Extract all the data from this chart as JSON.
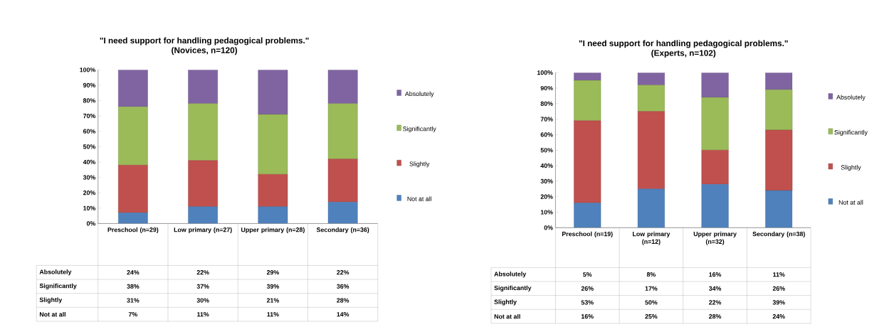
{
  "chart_data": [
    {
      "type": "bar",
      "stacked": true,
      "title": "\"I need support for handling pedagogical problems.\"",
      "subtitle": "(Novices, n=120)",
      "categories": [
        "Preschool (n=29)",
        "Low primary (n=27)",
        "Upper primary (n=28)",
        "Secondary (n=36)"
      ],
      "ylim": [
        0,
        100
      ],
      "yticks": [
        {
          "value": 0,
          "label": "0%"
        },
        {
          "value": 10,
          "label": "10%"
        },
        {
          "value": 20,
          "label": "20%"
        },
        {
          "value": 30,
          "label": "30%"
        },
        {
          "value": 40,
          "label": "40%"
        },
        {
          "value": 50,
          "label": "50%"
        },
        {
          "value": 60,
          "label": "60%"
        },
        {
          "value": 70,
          "label": "70%"
        },
        {
          "value": 80,
          "label": "80%"
        },
        {
          "value": 90,
          "label": "90%"
        },
        {
          "value": 100,
          "label": "100%"
        }
      ],
      "legend": "right",
      "series": [
        {
          "name": "Not at all",
          "color": "#4f81bd",
          "values": [
            7,
            11,
            11,
            14
          ],
          "value_labels": [
            "7%",
            "11%",
            "11%",
            "14%"
          ]
        },
        {
          "name": "Slightly",
          "color": "#c0504d",
          "values": [
            31,
            30,
            21,
            28
          ],
          "value_labels": [
            "31%",
            "30%",
            "21%",
            "28%"
          ]
        },
        {
          "name": "Significantly",
          "color": "#9bbb59",
          "values": [
            38,
            37,
            39,
            36
          ],
          "value_labels": [
            "38%",
            "37%",
            "39%",
            "36%"
          ]
        },
        {
          "name": "Absolutely",
          "color": "#8064a2",
          "values": [
            24,
            22,
            29,
            22
          ],
          "value_labels": [
            "24%",
            "22%",
            "29%",
            "22%"
          ]
        }
      ]
    },
    {
      "type": "bar",
      "stacked": true,
      "title": "\"I need support for handling pedagogical problems.\"",
      "subtitle": "(Experts, n=102)",
      "categories": [
        "Preschool (n=19)",
        "Low primary (n=12)",
        "Upper primary (n=32)",
        "Secondary (n=38)"
      ],
      "ylim": [
        0,
        100
      ],
      "yticks": [
        {
          "value": 0,
          "label": "0%"
        },
        {
          "value": 10,
          "label": "10%"
        },
        {
          "value": 20,
          "label": "20%"
        },
        {
          "value": 30,
          "label": "30%"
        },
        {
          "value": 40,
          "label": "40%"
        },
        {
          "value": 50,
          "label": "50%"
        },
        {
          "value": 60,
          "label": "60%"
        },
        {
          "value": 70,
          "label": "70%"
        },
        {
          "value": 80,
          "label": "80%"
        },
        {
          "value": 90,
          "label": "90%"
        },
        {
          "value": 100,
          "label": "100%"
        }
      ],
      "legend": "right",
      "series": [
        {
          "name": "Not at all",
          "color": "#4f81bd",
          "values": [
            16,
            25,
            28,
            24
          ],
          "value_labels": [
            "16%",
            "25%",
            "28%",
            "24%"
          ]
        },
        {
          "name": "Slightly",
          "color": "#c0504d",
          "values": [
            53,
            50,
            22,
            39
          ],
          "value_labels": [
            "53%",
            "50%",
            "22%",
            "39%"
          ]
        },
        {
          "name": "Significantly",
          "color": "#9bbb59",
          "values": [
            26,
            17,
            34,
            26
          ],
          "value_labels": [
            "26%",
            "17%",
            "34%",
            "26%"
          ]
        },
        {
          "name": "Absolutely",
          "color": "#8064a2",
          "values": [
            5,
            8,
            16,
            11
          ],
          "value_labels": [
            "5%",
            "8%",
            "16%",
            "11%"
          ]
        }
      ]
    }
  ]
}
